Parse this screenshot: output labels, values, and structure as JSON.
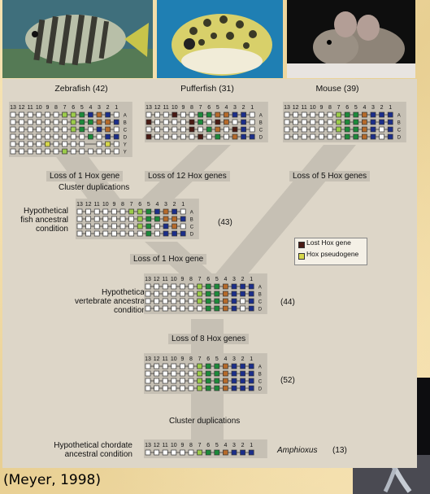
{
  "species": {
    "zebrafish": "Zebrafish (42)",
    "pufferfish": "Pufferfish (31)",
    "mouse": "Mouse (39)"
  },
  "events": {
    "zf_loss": "Loss of 1 Hox gene",
    "fish_dup": "Cluster duplications",
    "pf_loss": "Loss of 12 Hox genes",
    "mouse_loss": "Loss of 5 Hox genes",
    "anc_loss": "Loss of 1 Hox gene",
    "loss8": "Loss of 8 Hox genes",
    "dup": "Cluster duplications"
  },
  "conditions": {
    "fish_1": "Hypothetical",
    "fish_2": "fish ancestral",
    "fish_3": "condition",
    "vert_1": "Hypothetical",
    "vert_2": "vertebrate ancestral",
    "vert_3": "condition",
    "chord_1": "Hypothetical chordate",
    "chord_2": "ancestral condition"
  },
  "counts": {
    "fish": "(43)",
    "vert": "(44)",
    "pre": "(52)",
    "amph_name": "Amphioxus",
    "amph": "(13)"
  },
  "legend": {
    "lost": "Lost Hox gene",
    "pseudo": "Hox pseudogene"
  },
  "citation": "(Meyer, 1998)",
  "gene_numbers": [
    "13",
    "12",
    "11",
    "10",
    "9",
    "8",
    "7",
    "6",
    "5",
    "4",
    "3",
    "2",
    "1"
  ],
  "cluster_letters": [
    "A",
    "B",
    "C",
    "D"
  ],
  "zebrafish_letters": [
    "A",
    "B",
    "C",
    "D",
    "Y",
    "Y"
  ],
  "colors": {
    "empty": "#ffffff",
    "green_light": "#9ccc4a",
    "green_dark": "#1c8a3a",
    "brown": "#b56a2a",
    "navy": "#1b2e8a",
    "blue": "#2a56c8",
    "lost": "#4a1a14",
    "pseudo": "#d6d64a"
  },
  "clusters": {
    "zebrafish": [
      "wwwwwwllgbnbw",
      "wwwwwwwlggnnb",
      "wwwwwwwlgwbnw",
      "wwwwwwwwwgwbb",
      "wwwwpwwww wpw",
      "wwwwwwlwwwwww"
    ],
    "pufferfish": [
      "wwwxwwggnnbbw",
      "xwwwwxgwxnwbw",
      "wwwwwxwgnwxbw",
      "xwwwwwxwgwnbb"
    ],
    "mouse": [
      "wwwwwwlggnbbb",
      "wwwwwwlggnbbb",
      "wwwwwwlggnbwb",
      "wwwwwwwggnbwb"
    ],
    "fish_ancestral": [
      "wwwwwwllgbnbw",
      "wwwwwwwlggnnb",
      "wwwwwwwlgwbnw",
      "wwwwwwwwgwbbb"
    ],
    "vertebrate": [
      "wwwwwwlggnbbb",
      "wwwwwwlggnbbb",
      "wwwwwwlggnbwb",
      "wwwwwwwggnbwb"
    ],
    "preduplication": [
      "wwwwwwlggnbbb",
      "wwwwwwlggnbbb",
      "wwwwwwlggnbbb",
      "wwwwwwlggnbbb"
    ],
    "amphioxus": [
      "wwwwwwlggnbbb"
    ]
  }
}
